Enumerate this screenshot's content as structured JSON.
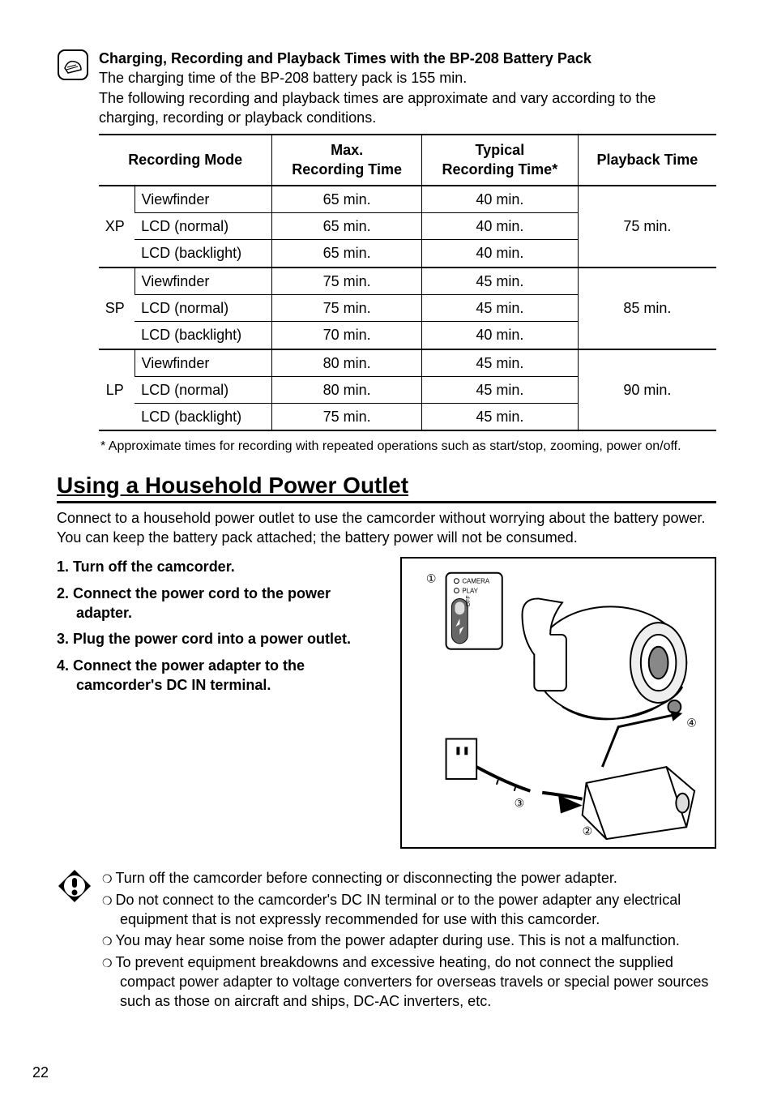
{
  "note_section": {
    "title": "Charging, Recording and Playback Times with the BP-208 Battery Pack",
    "line1": "The charging time of the BP-208 battery pack is 155 min.",
    "line2": "The following recording and playback times are approximate and vary according to the charging, recording or playback conditions."
  },
  "table": {
    "headers": {
      "mode": "Recording Mode",
      "max": "Max. Recording Time",
      "typical": "Typical Recording Time*",
      "playback": "Playback Time"
    },
    "groups": [
      {
        "mode": "XP",
        "playback": "75 min.",
        "rows": [
          {
            "disp": "Viewfinder",
            "max": "65 min.",
            "typ": "40 min."
          },
          {
            "disp": "LCD (normal)",
            "max": "65 min.",
            "typ": "40 min."
          },
          {
            "disp": "LCD (backlight)",
            "max": "65 min.",
            "typ": "40 min."
          }
        ]
      },
      {
        "mode": "SP",
        "playback": "85 min.",
        "rows": [
          {
            "disp": "Viewfinder",
            "max": "75 min.",
            "typ": "45 min."
          },
          {
            "disp": "LCD (normal)",
            "max": "75 min.",
            "typ": "45 min."
          },
          {
            "disp": "LCD (backlight)",
            "max": "70 min.",
            "typ": "40 min."
          }
        ]
      },
      {
        "mode": "LP",
        "playback": "90 min.",
        "rows": [
          {
            "disp": "Viewfinder",
            "max": "80 min.",
            "typ": "45 min."
          },
          {
            "disp": "LCD (normal)",
            "max": "80 min.",
            "typ": "45 min."
          },
          {
            "disp": "LCD (backlight)",
            "max": "75 min.",
            "typ": "45 min."
          }
        ]
      }
    ]
  },
  "footnote": "* Approximate times for recording with repeated operations such as start/stop, zooming, power on/off.",
  "section_heading": "Using a Household Power Outlet",
  "intro": "Connect to a household power outlet to use the camcorder without worrying about the battery power. You can keep the battery pack attached; the battery power will not be consumed.",
  "steps": [
    "1.  Turn off the camcorder.",
    "2.  Connect the power cord to the power adapter.",
    "3.  Plug the power cord into a power outlet.",
    "4.  Connect the power adapter to the camcorder's DC IN terminal."
  ],
  "diagram": {
    "labels": {
      "camera": "CAMERA",
      "play": "PLAY",
      "mode": "MODE",
      "on": "ON",
      "off": "OFF"
    },
    "callouts": [
      "①",
      "②",
      "③",
      "④"
    ]
  },
  "warnings": [
    "Turn off the camcorder before connecting or disconnecting the power adapter.",
    "Do not connect to the camcorder's DC IN terminal or to the power adapter any electrical equipment that is not expressly recommended for use with this camcorder.",
    "You may hear some noise from the power adapter during use. This is not a malfunction.",
    "To prevent equipment breakdowns and excessive heating, do not connect the supplied compact power adapter to voltage converters for overseas travels or special power sources such as those on aircraft and ships, DC-AC inverters, etc."
  ],
  "page_number": "22"
}
